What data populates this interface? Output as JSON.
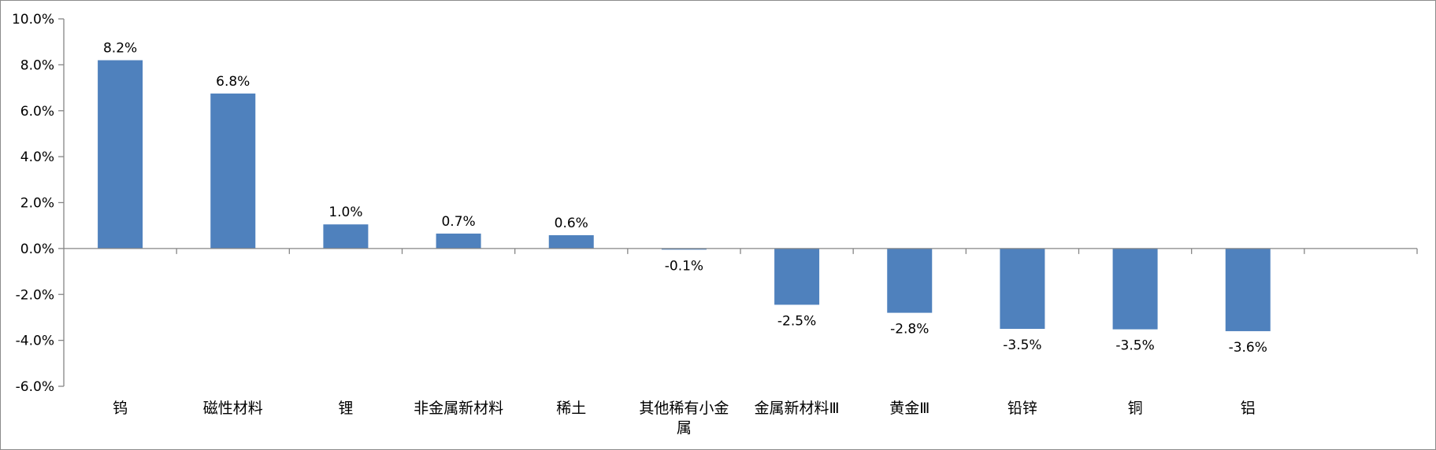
{
  "chart_data": {
    "type": "bar",
    "categories": [
      "钨",
      "磁性材料",
      "锂",
      "非金属新材料",
      "稀土",
      "其他稀有小金属",
      "金属新材料Ⅲ",
      "黄金Ⅲ",
      "铅锌",
      "铜",
      "铝"
    ],
    "category_lines": [
      [
        "钨"
      ],
      [
        "磁性材料"
      ],
      [
        "锂"
      ],
      [
        "非金属新材料"
      ],
      [
        "稀土"
      ],
      [
        "其他稀有小金",
        "属"
      ],
      [
        "金属新材料Ⅲ"
      ],
      [
        "黄金Ⅲ"
      ],
      [
        "铅锌"
      ],
      [
        "铜"
      ],
      [
        "铝"
      ]
    ],
    "values": [
      8.2,
      6.8,
      1.0,
      0.7,
      0.6,
      -0.1,
      -2.5,
      -2.8,
      -3.5,
      -3.5,
      -3.6
    ],
    "bar_heights": [
      8.2,
      6.75,
      1.05,
      0.65,
      0.58,
      -0.05,
      -2.45,
      -2.8,
      -3.5,
      -3.52,
      -3.6
    ],
    "data_labels": [
      "8.2%",
      "6.8%",
      "1.0%",
      "0.7%",
      "0.6%",
      "-0.1%",
      "-2.5%",
      "-2.8%",
      "-3.5%",
      "-3.5%",
      "-3.6%"
    ],
    "ylim": [
      -6.0,
      10.0
    ],
    "y_ticks": [
      10.0,
      8.0,
      6.0,
      4.0,
      2.0,
      0.0,
      -2.0,
      -4.0,
      -6.0
    ],
    "y_tick_labels": [
      "10.0%",
      "8.0%",
      "6.0%",
      "4.0%",
      "2.0%",
      "0.0%",
      "-2.0%",
      "-4.0%",
      "-6.0%"
    ],
    "slot_count": 12,
    "grid": false,
    "legend": "none",
    "bar_color": "#4f81bd",
    "axis_color": "#868686",
    "title": "",
    "xlabel": "",
    "ylabel": ""
  }
}
